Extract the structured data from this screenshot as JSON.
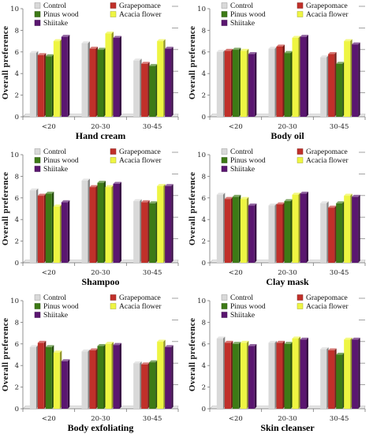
{
  "chart_data": [
    {
      "type": "bar",
      "title": "Hand cream",
      "ylabel": "Overall preference",
      "ylim": [
        0,
        10
      ],
      "yticks": [
        0,
        2,
        4,
        6,
        8,
        10
      ],
      "legend": "top",
      "categories": [
        "<20",
        "20-30",
        "30-45"
      ],
      "series": [
        {
          "name": "Control",
          "color": "#d9d9d9",
          "values": [
            5.9,
            6.8,
            5.2
          ]
        },
        {
          "name": "Grapepomace",
          "color": "#c0302a",
          "values": [
            5.7,
            6.3,
            4.9
          ]
        },
        {
          "name": "Pinus wood",
          "color": "#3d7a16",
          "values": [
            5.6,
            6.2,
            4.7
          ]
        },
        {
          "name": "Acacia flower",
          "color": "#eef542",
          "values": [
            7.0,
            7.7,
            7.0
          ]
        },
        {
          "name": "Shiitake",
          "color": "#5a1670",
          "values": [
            7.4,
            7.3,
            6.3
          ]
        }
      ]
    },
    {
      "type": "bar",
      "title": "Body oil",
      "ylabel": "Overall preference",
      "ylim": [
        0,
        10
      ],
      "yticks": [
        0,
        2,
        4,
        6,
        8,
        10
      ],
      "legend": "top",
      "categories": [
        "<20",
        "20-30",
        "30-45"
      ],
      "series": [
        {
          "name": "Control",
          "color": "#d9d9d9",
          "values": [
            6.0,
            6.3,
            5.5
          ]
        },
        {
          "name": "Grapepomace",
          "color": "#c0302a",
          "values": [
            6.1,
            6.5,
            5.8
          ]
        },
        {
          "name": "Pinus wood",
          "color": "#3d7a16",
          "values": [
            6.2,
            5.9,
            4.9
          ]
        },
        {
          "name": "Acacia flower",
          "color": "#eef542",
          "values": [
            6.1,
            7.3,
            7.0
          ]
        },
        {
          "name": "Shiitake",
          "color": "#5a1670",
          "values": [
            5.8,
            7.4,
            6.7
          ]
        }
      ]
    },
    {
      "type": "bar",
      "title": "Shampoo",
      "ylabel": "Overall preference",
      "ylim": [
        0,
        10
      ],
      "yticks": [
        0,
        2,
        4,
        6,
        8,
        10
      ],
      "legend": "top",
      "categories": [
        "<20",
        "20-30",
        "30-45"
      ],
      "series": [
        {
          "name": "Control",
          "color": "#d9d9d9",
          "values": [
            6.7,
            7.6,
            5.7
          ]
        },
        {
          "name": "Grapepomace",
          "color": "#c0302a",
          "values": [
            6.2,
            7.0,
            5.6
          ]
        },
        {
          "name": "Pinus wood",
          "color": "#3d7a16",
          "values": [
            6.4,
            7.4,
            5.5
          ]
        },
        {
          "name": "Acacia flower",
          "color": "#eef542",
          "values": [
            5.2,
            7.0,
            7.1
          ]
        },
        {
          "name": "Shiitake",
          "color": "#5a1670",
          "values": [
            5.6,
            7.3,
            7.1
          ]
        }
      ]
    },
    {
      "type": "bar",
      "title": "Clay mask",
      "ylabel": "Overall preference",
      "ylim": [
        0,
        10
      ],
      "yticks": [
        0,
        2,
        4,
        6,
        8,
        10
      ],
      "legend": "top",
      "categories": [
        "<20",
        "20-30",
        "30-45"
      ],
      "series": [
        {
          "name": "Control",
          "color": "#d9d9d9",
          "values": [
            6.3,
            5.3,
            5.5
          ]
        },
        {
          "name": "Grapepomace",
          "color": "#c0302a",
          "values": [
            5.9,
            5.4,
            5.1
          ]
        },
        {
          "name": "Pinus wood",
          "color": "#3d7a16",
          "values": [
            6.1,
            5.7,
            5.5
          ]
        },
        {
          "name": "Acacia flower",
          "color": "#eef542",
          "values": [
            5.9,
            6.3,
            6.2
          ]
        },
        {
          "name": "Shiitake",
          "color": "#5a1670",
          "values": [
            5.3,
            6.4,
            6.1
          ]
        }
      ]
    },
    {
      "type": "bar",
      "title": "Body exfoliating",
      "ylabel": "Overall preference",
      "ylim": [
        0,
        10
      ],
      "yticks": [
        0,
        2,
        4,
        6,
        8,
        10
      ],
      "legend": "top",
      "categories": [
        "<20",
        "20-30",
        "30-45"
      ],
      "series": [
        {
          "name": "Control",
          "color": "#d9d9d9",
          "values": [
            5.7,
            5.3,
            4.2
          ]
        },
        {
          "name": "Grapepomace",
          "color": "#c0302a",
          "values": [
            6.1,
            5.4,
            4.1
          ]
        },
        {
          "name": "Pinus wood",
          "color": "#3d7a16",
          "values": [
            5.7,
            5.8,
            4.3
          ]
        },
        {
          "name": "Acacia flower",
          "color": "#eef542",
          "values": [
            5.2,
            6.0,
            6.2
          ]
        },
        {
          "name": "Shiitake",
          "color": "#5a1670",
          "values": [
            4.4,
            5.9,
            5.7
          ]
        }
      ]
    },
    {
      "type": "bar",
      "title": "Skin cleanser",
      "ylabel": "Overall preference",
      "ylim": [
        0,
        10
      ],
      "yticks": [
        0,
        2,
        4,
        6,
        8,
        10
      ],
      "legend": "top",
      "categories": [
        "<20",
        "20-30",
        "30-45"
      ],
      "series": [
        {
          "name": "Control",
          "color": "#d9d9d9",
          "values": [
            6.5,
            6.1,
            5.5
          ]
        },
        {
          "name": "Grapepomace",
          "color": "#c0302a",
          "values": [
            6.1,
            6.1,
            5.4
          ]
        },
        {
          "name": "Pinus wood",
          "color": "#3d7a16",
          "values": [
            6.0,
            6.0,
            5.0
          ]
        },
        {
          "name": "Acacia flower",
          "color": "#eef542",
          "values": [
            6.1,
            6.5,
            6.4
          ]
        },
        {
          "name": "Shiitake",
          "color": "#5a1670",
          "values": [
            5.8,
            6.4,
            6.4
          ]
        }
      ]
    }
  ]
}
